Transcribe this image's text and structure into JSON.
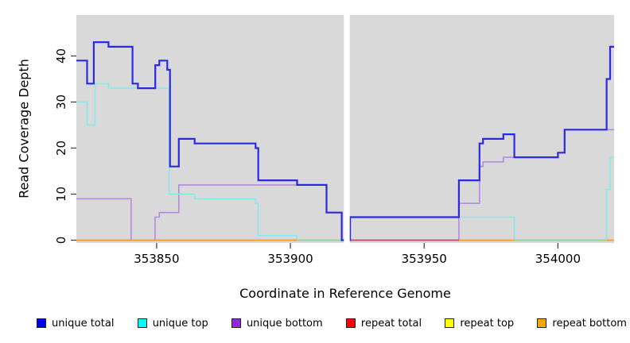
{
  "chart_data": {
    "type": "line",
    "subtype": "step",
    "title": "",
    "xlabel": "Coordinate in Reference Genome",
    "ylabel": "Read Coverage Depth",
    "xlim": [
      353820,
      354021
    ],
    "ylim": [
      0,
      49
    ],
    "x_ticks": [
      353850,
      353900,
      353950,
      354000
    ],
    "y_ticks": [
      0,
      10,
      20,
      30,
      40
    ],
    "grid": false,
    "plot_bg": "#d9d9d9",
    "page_bg": "#ffffff",
    "tick_color": "#444444",
    "gap": {
      "x_start": 353920,
      "x_end": 353922.2,
      "color": "#ffffff",
      "note": "white vertical band with no data"
    },
    "legend_position": "bottom",
    "series": [
      {
        "name": "unique bottom",
        "line_color": "#b48ae0",
        "line_width": 1.6,
        "in_legend": true,
        "points": [
          [
            353820,
            9
          ],
          [
            353840.5,
            0
          ],
          [
            353849.4,
            5
          ],
          [
            353851,
            6
          ],
          [
            353858.3,
            12
          ],
          [
            353913.5,
            6
          ],
          [
            353919.2,
            0
          ],
          [
            353963,
            8
          ],
          [
            353970.7,
            16
          ],
          [
            353972,
            17
          ],
          [
            353979.6,
            18
          ],
          [
            354000,
            19
          ],
          [
            354002.5,
            24
          ],
          [
            354021,
            24
          ]
        ]
      },
      {
        "name": "unique top",
        "line_color": "#8ae8e8",
        "line_width": 1.6,
        "in_legend": true,
        "points": [
          [
            353820,
            30
          ],
          [
            353824,
            25
          ],
          [
            353827,
            34
          ],
          [
            353832,
            33
          ],
          [
            353854.7,
            10
          ],
          [
            353864.2,
            9
          ],
          [
            353887,
            8
          ],
          [
            353888,
            1
          ],
          [
            353902.4,
            0
          ],
          [
            353922.3,
            5
          ],
          [
            353983.7,
            0
          ],
          [
            354018.2,
            11
          ],
          [
            354019.5,
            18
          ],
          [
            354021,
            18
          ]
        ]
      },
      {
        "name": "repeat total",
        "line_color": "#dd2222",
        "line_width": 1.5,
        "in_legend": true,
        "points": [
          [
            353820,
            0
          ],
          [
            354021,
            0
          ]
        ]
      },
      {
        "name": "repeat top",
        "line_color": "#e8e84a",
        "line_width": 1.5,
        "in_legend": true,
        "points": [
          [
            353820,
            0
          ],
          [
            354021,
            0
          ]
        ]
      },
      {
        "name": "repeat bottom",
        "line_color": "#ff9d2e",
        "line_width": 2,
        "in_legend": true,
        "points": [
          [
            353820,
            0
          ],
          [
            354021,
            0
          ]
        ]
      },
      {
        "name": "zero-overlap-green-left",
        "line_color": "#94d8a4",
        "line_width": 1.8,
        "in_legend": false,
        "points": [
          [
            353902.4,
            0
          ],
          [
            353919.2,
            0
          ]
        ]
      },
      {
        "name": "zero-overlap-crimson",
        "line_color": "#c8487e",
        "line_width": 1.8,
        "in_legend": false,
        "points": [
          [
            353922.3,
            0
          ],
          [
            353963,
            0
          ]
        ]
      },
      {
        "name": "zero-overlap-green-right",
        "line_color": "#94d8a4",
        "line_width": 1.8,
        "in_legend": false,
        "points": [
          [
            353983.7,
            0
          ],
          [
            354018.2,
            0
          ]
        ]
      },
      {
        "name": "unique total",
        "line_color": "#2a2ae0",
        "line_width": 2.2,
        "in_legend": true,
        "points": [
          [
            353820,
            39
          ],
          [
            353824,
            34
          ],
          [
            353826.5,
            43
          ],
          [
            353832,
            42
          ],
          [
            353841,
            34
          ],
          [
            353843,
            33
          ],
          [
            353849.5,
            38
          ],
          [
            353851,
            39
          ],
          [
            353854,
            37
          ],
          [
            353855,
            16
          ],
          [
            353858.3,
            22
          ],
          [
            353864.2,
            21
          ],
          [
            353887,
            20
          ],
          [
            353888,
            13
          ],
          [
            353902.5,
            12
          ],
          [
            353913.5,
            6
          ],
          [
            353919.2,
            0
          ],
          [
            353922.3,
            5
          ],
          [
            353963,
            13
          ],
          [
            353970.7,
            21
          ],
          [
            353972,
            22
          ],
          [
            353979.6,
            23
          ],
          [
            353983.7,
            18
          ],
          [
            354000,
            19
          ],
          [
            354002.5,
            24
          ],
          [
            354018.2,
            35
          ],
          [
            354019.5,
            42
          ],
          [
            354021,
            42
          ]
        ]
      }
    ],
    "legend": [
      {
        "label": "unique total",
        "color": "#0000ee"
      },
      {
        "label": "unique top",
        "color": "#00ffff"
      },
      {
        "label": "unique bottom",
        "color": "#9326e0"
      },
      {
        "label": "repeat total",
        "color": "#ff0000"
      },
      {
        "label": "repeat top",
        "color": "#ffff00"
      },
      {
        "label": "repeat bottom",
        "color": "#ffa500"
      }
    ]
  }
}
